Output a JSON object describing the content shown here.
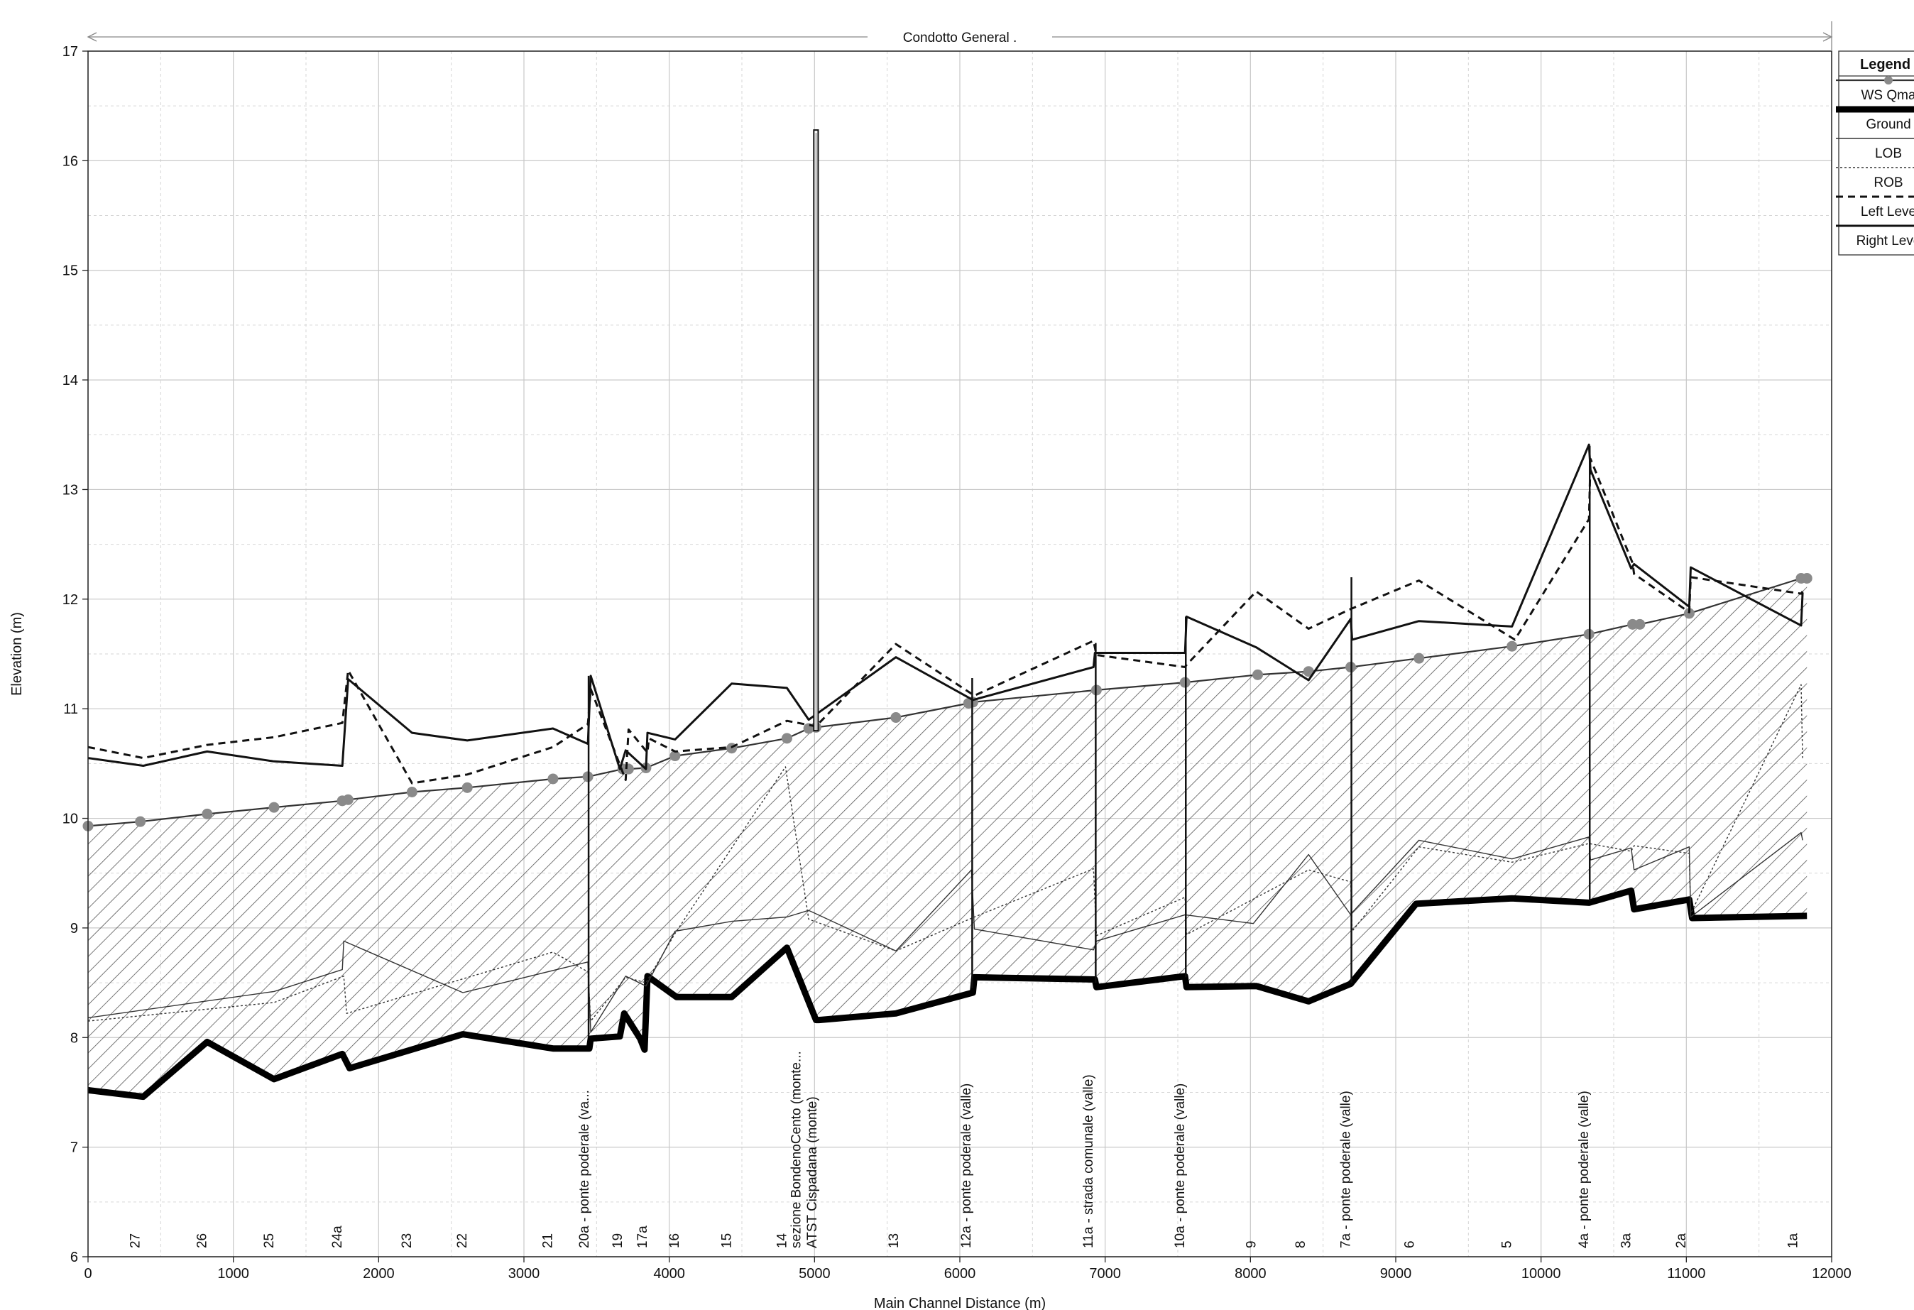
{
  "chart_data": {
    "type": "line",
    "title": "Condotto General .",
    "xlabel": "Main Channel Distance (m)",
    "ylabel": "Elevation (m)",
    "xlim": [
      0,
      12000
    ],
    "ylim": [
      6,
      17
    ],
    "xticks": [
      "0",
      "1000",
      "2000",
      "3000",
      "4000",
      "5000",
      "6000",
      "7000",
      "8000",
      "9000",
      "10000",
      "11000",
      "12000"
    ],
    "yticks": [
      "6",
      "7",
      "8",
      "9",
      "10",
      "11",
      "12",
      "13",
      "14",
      "15",
      "16",
      "17"
    ],
    "grid": true,
    "legend": {
      "title": "Legend",
      "placement": "right",
      "entries": [
        "WS  Qma",
        "Ground",
        "LOB",
        "ROB",
        "Left Leve",
        "Right Leve"
      ]
    },
    "series": [
      {
        "name": "WS  Qma",
        "style": "line-markers",
        "x": [
          0,
          360,
          820,
          1280,
          1750,
          1790,
          2230,
          2610,
          3200,
          3440,
          3680,
          3720,
          3840,
          4040,
          4430,
          4810,
          4960,
          5010,
          5560,
          6060,
          6090,
          6940,
          7550,
          8050,
          8400,
          8690,
          9160,
          9800,
          10330,
          10630,
          10680,
          11020,
          11790,
          11830
        ],
        "y": [
          9.93,
          9.97,
          10.04,
          10.1,
          10.16,
          10.17,
          10.24,
          10.28,
          10.36,
          10.38,
          10.45,
          10.45,
          10.46,
          10.57,
          10.64,
          10.73,
          10.82,
          10.83,
          10.92,
          11.05,
          11.06,
          11.17,
          11.24,
          11.31,
          11.34,
          11.38,
          11.46,
          11.57,
          11.68,
          11.77,
          11.77,
          11.87,
          12.19,
          12.19
        ]
      },
      {
        "name": "Ground",
        "style": "thick",
        "x": [
          0,
          380,
          820,
          1280,
          1750,
          1800,
          2580,
          3200,
          3450,
          3460,
          3660,
          3690,
          3800,
          3830,
          3850,
          4050,
          4430,
          4810,
          5010,
          5030,
          5560,
          6090,
          6100,
          6930,
          6940,
          7550,
          7560,
          8040,
          8400,
          8690,
          9140,
          9800,
          10330,
          10620,
          10640,
          11020,
          11040,
          11830
        ],
        "y": [
          7.52,
          7.46,
          7.96,
          7.62,
          7.85,
          7.72,
          8.03,
          7.9,
          7.9,
          7.99,
          8.01,
          8.22,
          7.99,
          7.89,
          8.56,
          8.37,
          8.37,
          8.82,
          8.16,
          8.16,
          8.22,
          8.41,
          8.55,
          8.53,
          8.46,
          8.56,
          8.46,
          8.47,
          8.33,
          8.49,
          9.22,
          9.27,
          9.23,
          9.34,
          9.17,
          9.26,
          9.09,
          9.11
        ]
      },
      {
        "name": "LOB",
        "style": "thin",
        "x": [
          0,
          1280,
          1750,
          1760,
          2580,
          3440,
          3460,
          3700,
          3840,
          4040,
          4430,
          4810,
          4960,
          5560,
          6080,
          6100,
          6920,
          6940,
          7550,
          8020,
          8400,
          8690,
          8700,
          9160,
          9800,
          10330,
          10340,
          10620,
          10640,
          11020,
          11030,
          11790,
          11800
        ],
        "y": [
          8.18,
          8.42,
          8.62,
          8.88,
          8.41,
          8.69,
          8.05,
          8.56,
          8.47,
          8.97,
          9.06,
          9.1,
          9.16,
          8.79,
          9.53,
          8.99,
          8.8,
          8.88,
          9.12,
          9.04,
          9.67,
          9.12,
          9.14,
          9.8,
          9.63,
          9.83,
          9.62,
          9.73,
          9.53,
          9.74,
          9.1,
          9.87,
          9.8
        ]
      },
      {
        "name": "ROB",
        "style": "dotted",
        "x": [
          0,
          1280,
          1760,
          1780,
          3200,
          3440,
          3460,
          3700,
          3840,
          4040,
          4800,
          4960,
          5560,
          6100,
          6920,
          6940,
          7550,
          7560,
          8400,
          8690,
          8700,
          9160,
          9800,
          10330,
          10620,
          10640,
          11020,
          11030,
          11790,
          11800
        ],
        "y": [
          8.15,
          8.32,
          8.56,
          8.22,
          8.78,
          8.6,
          8.15,
          8.55,
          8.5,
          8.95,
          10.47,
          9.08,
          8.79,
          9.1,
          9.54,
          8.93,
          9.28,
          8.94,
          9.53,
          9.42,
          8.97,
          9.74,
          9.6,
          9.77,
          9.7,
          9.75,
          9.68,
          9.13,
          11.22,
          10.55
        ]
      },
      {
        "name": "Left Leve",
        "style": "dashed",
        "x": [
          0,
          380,
          820,
          1280,
          1750,
          1790,
          2230,
          2610,
          3200,
          3440,
          3460,
          3700,
          3720,
          3850,
          3860,
          4040,
          4430,
          4810,
          5010,
          5560,
          6100,
          6920,
          6940,
          7550,
          7560,
          8040,
          8400,
          8690,
          9160,
          9820,
          10330,
          10340,
          10630,
          10640,
          11020,
          11030,
          11790,
          11800
        ],
        "y": [
          10.65,
          10.55,
          10.67,
          10.74,
          10.87,
          11.35,
          10.32,
          10.4,
          10.65,
          10.86,
          11.18,
          10.35,
          10.81,
          10.6,
          10.73,
          10.61,
          10.65,
          10.89,
          10.84,
          11.59,
          11.12,
          11.62,
          11.49,
          11.38,
          11.4,
          12.07,
          11.73,
          11.91,
          12.17,
          11.63,
          12.73,
          13.28,
          12.33,
          12.23,
          11.88,
          12.2,
          12.05,
          12.07
        ]
      },
      {
        "name": "Right Leve",
        "style": "solid",
        "x": [
          0,
          380,
          820,
          1280,
          1750,
          1790,
          2230,
          2610,
          3200,
          3440,
          3460,
          3660,
          3700,
          3840,
          3850,
          4040,
          4430,
          4810,
          4960,
          5560,
          6090,
          6920,
          6930,
          7550,
          7560,
          8040,
          8400,
          8690,
          8700,
          9160,
          9800,
          10330,
          10340,
          10620,
          10640,
          11020,
          11030,
          11790,
          11800
        ],
        "y": [
          10.55,
          10.48,
          10.61,
          10.52,
          10.48,
          11.27,
          10.78,
          10.71,
          10.82,
          10.68,
          11.3,
          10.45,
          10.62,
          10.45,
          10.78,
          10.72,
          11.23,
          11.19,
          10.9,
          11.47,
          11.08,
          11.38,
          11.51,
          11.51,
          11.84,
          11.56,
          11.26,
          11.82,
          11.63,
          11.8,
          11.75,
          13.41,
          13.18,
          12.28,
          12.32,
          11.93,
          12.29,
          11.76,
          12.06
        ]
      }
    ],
    "bridges": [
      {
        "x": 3445,
        "y": [
          8.0,
          11.3
        ]
      },
      {
        "x": 6085,
        "y": [
          8.45,
          11.28
        ]
      },
      {
        "x": 6935,
        "y": [
          8.5,
          11.6
        ]
      },
      {
        "x": 7555,
        "y": [
          8.55,
          11.84
        ]
      },
      {
        "x": 8695,
        "y": [
          8.5,
          12.2
        ]
      },
      {
        "x": 10335,
        "y": [
          9.25,
          13.4
        ]
      }
    ],
    "structure": {
      "x": [
        4995,
        5025
      ],
      "y": [
        10.8,
        16.28
      ]
    },
    "sections": [
      {
        "label": "27",
        "x": 320
      },
      {
        "label": "26",
        "x": 780
      },
      {
        "label": "25",
        "x": 1240
      },
      {
        "label": "24a",
        "x": 1710
      },
      {
        "label": "23",
        "x": 2190
      },
      {
        "label": "22",
        "x": 2570
      },
      {
        "label": "21",
        "x": 3160
      },
      {
        "label": "20a - ponte poderale (va...",
        "x": 3410
      },
      {
        "label": "19",
        "x": 3640
      },
      {
        "label": "17a",
        "x": 3810
      },
      {
        "label": "16",
        "x": 4030
      },
      {
        "label": "15",
        "x": 4390
      },
      {
        "label": "14",
        "x": 4770
      },
      {
        "label": "sezione BondenoCento (monte...",
        "x": 4870
      },
      {
        "label": "ATST Cispadana (monte)",
        "x": 4980
      },
      {
        "label": "13",
        "x": 5540
      },
      {
        "label": "12a - ponte poderale (valle)",
        "x": 6040
      },
      {
        "label": "11a - strada comunale (valle)",
        "x": 6880
      },
      {
        "label": "10a - ponte poderale (valle)",
        "x": 7510
      },
      {
        "label": "9",
        "x": 8000
      },
      {
        "label": "8",
        "x": 8340
      },
      {
        "label": "7a - ponte poderale (valle)",
        "x": 8650
      },
      {
        "label": "6",
        "x": 9090
      },
      {
        "label": "5",
        "x": 9760
      },
      {
        "label": "4a - ponte poderale (valle)",
        "x": 10290
      },
      {
        "label": "3a",
        "x": 10580
      },
      {
        "label": "2a",
        "x": 10960
      },
      {
        "label": "1a",
        "x": 11730
      }
    ]
  }
}
